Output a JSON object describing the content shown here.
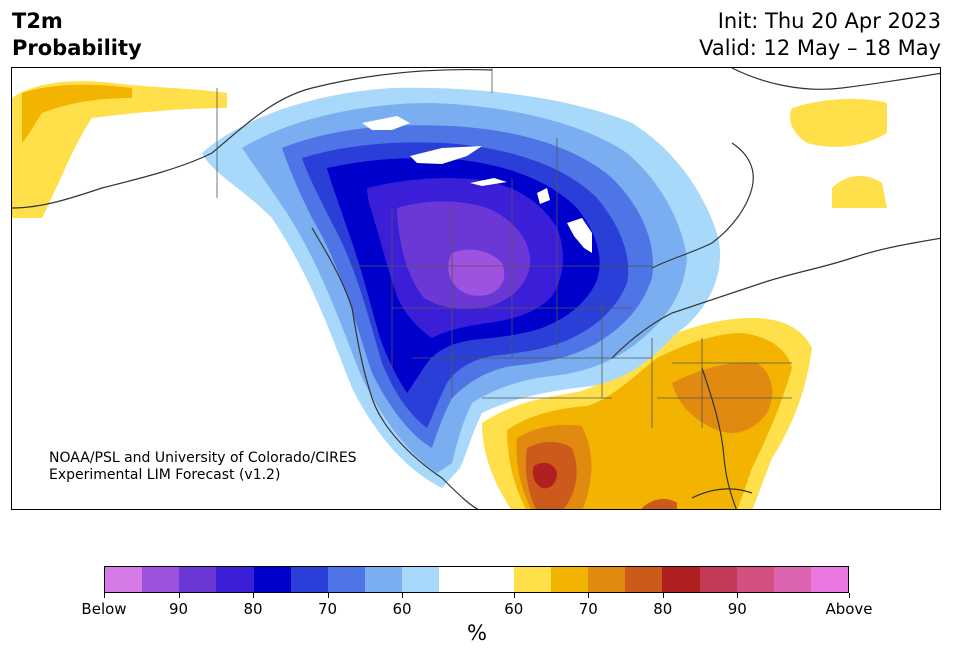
{
  "header": {
    "left_line1": "T2m",
    "left_line2": "Probability",
    "right_line1": "Init: Thu 20 Apr 2023",
    "right_line2": "Valid: 12 May – 18 May"
  },
  "credit": {
    "line1": "NOAA/PSL and University of Colorado/CIRES",
    "line2": "Experimental LIM Forecast (v1.2)"
  },
  "colorbar": {
    "colors": [
      "#d67ae8",
      "#9d52e0",
      "#6b38d6",
      "#3a1ed8",
      "#0000cc",
      "#2a3ed8",
      "#4f74e6",
      "#7aaef0",
      "#a8d8fa",
      "#ffffff",
      "#ffffff",
      "#ffe04a",
      "#f2b400",
      "#e08a10",
      "#cc5a1a",
      "#b02020",
      "#c23a55",
      "#d24f80",
      "#dc63b0",
      "#e878e0"
    ],
    "tick_labels": [
      "Below",
      "90",
      "80",
      "70",
      "60",
      "60",
      "70",
      "80",
      "90",
      "Above"
    ],
    "unit": "%"
  },
  "map": {
    "region": "North America",
    "legend_colors": {
      "below_strong": "#9d52e0",
      "below_mid": "#0000cc",
      "below_weak": "#a8d8fa",
      "above_weak": "#ffe04a",
      "above_mid": "#e08a10",
      "above_strong": "#b02020"
    }
  }
}
